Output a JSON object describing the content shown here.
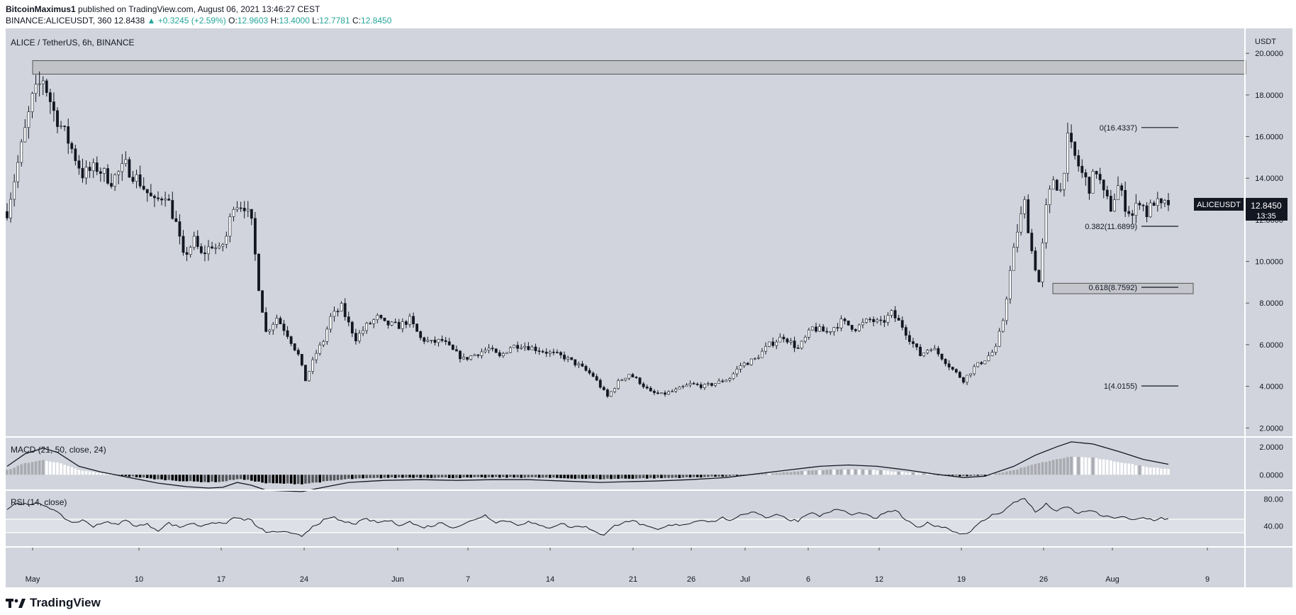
{
  "header": {
    "user": "BitcoinMaximus1",
    "published": "published on TradingView.com, August 06, 2021 13:46:27 CEST",
    "symbol": "BINANCE:ALICEUSDT, 360",
    "last": "12.8438",
    "change_arrow": "▲",
    "change": "+0.3245 (+2.59%)",
    "o_label": "O:",
    "o": "12.9603",
    "h_label": "H:",
    "h": "13.4000",
    "l_label": "L:",
    "l": "12.7781",
    "c_label": "C:",
    "c": "12.8450"
  },
  "branding": {
    "name": "TradingView",
    "icon": "tradingview-logo-icon"
  },
  "colors": {
    "background": "#d1d4dc",
    "candle": "#131722",
    "rsi_band": "#dde0e6",
    "up_text": "#26a69a"
  },
  "chart_data": [
    {
      "type": "candlestick",
      "title": "ALICE / TetherUS, 6h, BINANCE",
      "currency": "USDT",
      "symbol_tag": "ALICEUSDT",
      "price_tag": "12.8450",
      "countdown": "13:35",
      "x_ticks": [
        "May",
        "10",
        "17",
        "24",
        "Jun",
        "7",
        "14",
        "21",
        "26",
        "Jul",
        "6",
        "12",
        "19",
        "26",
        "Aug",
        "9"
      ],
      "y_ticks": [
        "20.0000",
        "18.0000",
        "16.0000",
        "14.0000",
        "12.0000",
        "10.0000",
        "8.0000",
        "6.0000",
        "4.0000",
        "2.0000"
      ],
      "ylim": [
        1.6,
        21.2
      ],
      "resistance_zone": [
        19.0,
        19.65
      ],
      "support_zone": [
        8.45,
        8.95
      ],
      "fib_levels": [
        {
          "label": "0(16.4337)",
          "value": 16.4337
        },
        {
          "label": "0.382(11.6899)",
          "value": 11.6899
        },
        {
          "label": "0.618(8.7592)",
          "value": 8.7592
        },
        {
          "label": "1(4.0155)",
          "value": 4.0155
        }
      ],
      "close_path": [
        [
          0,
          12.4
        ],
        [
          4,
          15.5
        ],
        [
          7,
          17.8
        ],
        [
          10,
          18.8
        ],
        [
          13,
          17.2
        ],
        [
          17,
          15.8
        ],
        [
          21,
          14.2
        ],
        [
          25,
          14.5
        ],
        [
          29,
          13.9
        ],
        [
          33,
          14.6
        ],
        [
          37,
          13.8
        ],
        [
          41,
          12.8
        ],
        [
          44,
          13.3
        ],
        [
          47,
          11.8
        ],
        [
          49,
          10.2
        ],
        [
          52,
          11.0
        ],
        [
          54,
          10.3
        ],
        [
          57,
          10.8
        ],
        [
          59,
          10.5
        ],
        [
          61,
          11.2
        ],
        [
          63,
          12.8
        ],
        [
          66,
          12.7
        ],
        [
          68,
          11.8
        ],
        [
          70,
          8.8
        ],
        [
          72,
          6.6
        ],
        [
          75,
          7.3
        ],
        [
          78,
          6.5
        ],
        [
          81,
          5.5
        ],
        [
          83,
          4.3
        ],
        [
          86,
          5.6
        ],
        [
          88,
          6.2
        ],
        [
          90,
          7.3
        ],
        [
          93,
          7.8
        ],
        [
          95,
          7.0
        ],
        [
          97,
          6.3
        ],
        [
          100,
          6.9
        ],
        [
          103,
          7.3
        ],
        [
          105,
          7.0
        ],
        [
          109,
          6.9
        ],
        [
          112,
          7.2
        ],
        [
          115,
          6.3
        ],
        [
          118,
          6.1
        ],
        [
          121,
          6.2
        ],
        [
          124,
          5.7
        ],
        [
          127,
          5.3
        ],
        [
          131,
          5.6
        ],
        [
          134,
          5.8
        ],
        [
          137,
          5.4
        ],
        [
          140,
          5.9
        ],
        [
          143,
          6.0
        ],
        [
          147,
          5.8
        ],
        [
          151,
          5.6
        ],
        [
          155,
          5.4
        ],
        [
          159,
          5.0
        ],
        [
          163,
          4.5
        ],
        [
          167,
          3.5
        ],
        [
          170,
          4.2
        ],
        [
          173,
          4.6
        ],
        [
          176,
          4.2
        ],
        [
          179,
          3.7
        ],
        [
          182,
          3.6
        ],
        [
          186,
          3.8
        ],
        [
          190,
          4.1
        ],
        [
          194,
          4.0
        ],
        [
          198,
          4.2
        ],
        [
          201,
          4.4
        ],
        [
          204,
          5.0
        ],
        [
          208,
          5.3
        ],
        [
          212,
          6.0
        ],
        [
          216,
          6.4
        ],
        [
          220,
          5.8
        ],
        [
          224,
          6.8
        ],
        [
          228,
          6.6
        ],
        [
          232,
          7.1
        ],
        [
          236,
          6.8
        ],
        [
          240,
          7.2
        ],
        [
          243,
          7.0
        ],
        [
          246,
          7.5
        ],
        [
          249,
          6.9
        ],
        [
          251,
          6.3
        ],
        [
          254,
          5.5
        ],
        [
          257,
          5.9
        ],
        [
          260,
          5.4
        ],
        [
          263,
          4.8
        ],
        [
          266,
          4.3
        ],
        [
          269,
          4.9
        ],
        [
          272,
          5.3
        ],
        [
          275,
          5.8
        ],
        [
          277,
          7.2
        ],
        [
          279,
          9.5
        ],
        [
          281,
          11.5
        ],
        [
          283,
          12.8
        ],
        [
          285,
          10.5
        ],
        [
          287,
          9.0
        ],
        [
          289,
          12.5
        ],
        [
          291,
          14.0
        ],
        [
          293,
          13.4
        ],
        [
          295,
          15.8
        ],
        [
          297,
          15.0
        ],
        [
          299,
          14.2
        ],
        [
          301,
          13.6
        ],
        [
          303,
          14.4
        ],
        [
          305,
          13.2
        ],
        [
          307,
          12.6
        ],
        [
          309,
          13.6
        ],
        [
          311,
          12.7
        ],
        [
          313,
          12.2
        ],
        [
          315,
          13.0
        ],
        [
          317,
          12.3
        ],
        [
          319,
          12.9
        ],
        [
          321,
          12.6
        ],
        [
          323,
          12.8
        ]
      ]
    },
    {
      "type": "histogram",
      "title": "MACD (21, 50, close, 24)",
      "y_ticks": [
        "2.0000",
        "0.0000"
      ],
      "ylim": [
        -1.05,
        2.65
      ],
      "macd_path": [
        [
          0,
          0.6
        ],
        [
          5,
          1.5
        ],
        [
          10,
          1.9
        ],
        [
          14,
          1.6
        ],
        [
          20,
          0.6
        ],
        [
          26,
          0.2
        ],
        [
          34,
          -0.2
        ],
        [
          42,
          -0.6
        ],
        [
          50,
          -0.85
        ],
        [
          56,
          -0.95
        ],
        [
          60,
          -0.9
        ],
        [
          64,
          -0.55
        ],
        [
          68,
          -0.75
        ],
        [
          72,
          -1.1
        ],
        [
          82,
          -1.2
        ],
        [
          88,
          -0.9
        ],
        [
          95,
          -0.55
        ],
        [
          105,
          -0.4
        ],
        [
          115,
          -0.35
        ],
        [
          125,
          -0.4
        ],
        [
          135,
          -0.35
        ],
        [
          145,
          -0.35
        ],
        [
          155,
          -0.45
        ],
        [
          165,
          -0.55
        ],
        [
          172,
          -0.5
        ],
        [
          180,
          -0.45
        ],
        [
          190,
          -0.35
        ],
        [
          200,
          -0.2
        ],
        [
          208,
          0.05
        ],
        [
          216,
          0.3
        ],
        [
          226,
          0.6
        ],
        [
          234,
          0.7
        ],
        [
          242,
          0.6
        ],
        [
          250,
          0.35
        ],
        [
          258,
          0.05
        ],
        [
          266,
          -0.2
        ],
        [
          272,
          -0.1
        ],
        [
          280,
          0.6
        ],
        [
          286,
          1.4
        ],
        [
          292,
          2.0
        ],
        [
          296,
          2.35
        ],
        [
          302,
          2.2
        ],
        [
          310,
          1.6
        ],
        [
          316,
          1.1
        ],
        [
          323,
          0.75
        ]
      ]
    },
    {
      "type": "line",
      "title": "RSI (14, close)",
      "y_ticks": [
        "80.00",
        "40.00"
      ],
      "ylim": [
        10,
        92
      ],
      "band": [
        30,
        50
      ],
      "rsi_path": [
        [
          0,
          65
        ],
        [
          3,
          75
        ],
        [
          6,
          70
        ],
        [
          9,
          74
        ],
        [
          12,
          67
        ],
        [
          15,
          55
        ],
        [
          18,
          45
        ],
        [
          21,
          48
        ],
        [
          24,
          40
        ],
        [
          27,
          46
        ],
        [
          30,
          42
        ],
        [
          33,
          48
        ],
        [
          36,
          40
        ],
        [
          39,
          42
        ],
        [
          42,
          34
        ],
        [
          45,
          44
        ],
        [
          48,
          38
        ],
        [
          51,
          44
        ],
        [
          54,
          40
        ],
        [
          57,
          46
        ],
        [
          60,
          42
        ],
        [
          63,
          52
        ],
        [
          66,
          50
        ],
        [
          68,
          48
        ],
        [
          70,
          36
        ],
        [
          73,
          30
        ],
        [
          76,
          32
        ],
        [
          79,
          28
        ],
        [
          82,
          25
        ],
        [
          85,
          40
        ],
        [
          88,
          48
        ],
        [
          91,
          52
        ],
        [
          94,
          45
        ],
        [
          97,
          44
        ],
        [
          100,
          50
        ],
        [
          103,
          45
        ],
        [
          106,
          48
        ],
        [
          109,
          42
        ],
        [
          112,
          46
        ],
        [
          115,
          38
        ],
        [
          118,
          40
        ],
        [
          121,
          45
        ],
        [
          124,
          38
        ],
        [
          127,
          42
        ],
        [
          130,
          50
        ],
        [
          133,
          56
        ],
        [
          136,
          46
        ],
        [
          139,
          48
        ],
        [
          142,
          42
        ],
        [
          145,
          46
        ],
        [
          148,
          40
        ],
        [
          151,
          38
        ],
        [
          154,
          44
        ],
        [
          157,
          38
        ],
        [
          160,
          40
        ],
        [
          163,
          34
        ],
        [
          166,
          26
        ],
        [
          169,
          40
        ],
        [
          172,
          48
        ],
        [
          175,
          46
        ],
        [
          178,
          38
        ],
        [
          181,
          34
        ],
        [
          184,
          40
        ],
        [
          187,
          42
        ],
        [
          190,
          44
        ],
        [
          193,
          50
        ],
        [
          196,
          46
        ],
        [
          199,
          52
        ],
        [
          202,
          48
        ],
        [
          205,
          58
        ],
        [
          208,
          62
        ],
        [
          211,
          52
        ],
        [
          214,
          58
        ],
        [
          217,
          50
        ],
        [
          220,
          48
        ],
        [
          223,
          60
        ],
        [
          226,
          55
        ],
        [
          229,
          62
        ],
        [
          232,
          64
        ],
        [
          235,
          56
        ],
        [
          238,
          60
        ],
        [
          241,
          50
        ],
        [
          244,
          58
        ],
        [
          247,
          64
        ],
        [
          250,
          48
        ],
        [
          253,
          38
        ],
        [
          256,
          44
        ],
        [
          259,
          40
        ],
        [
          262,
          36
        ],
        [
          265,
          28
        ],
        [
          268,
          32
        ],
        [
          271,
          46
        ],
        [
          274,
          56
        ],
        [
          277,
          62
        ],
        [
          280,
          74
        ],
        [
          283,
          82
        ],
        [
          286,
          60
        ],
        [
          289,
          72
        ],
        [
          292,
          62
        ],
        [
          295,
          68
        ],
        [
          298,
          58
        ],
        [
          301,
          64
        ],
        [
          304,
          56
        ],
        [
          307,
          52
        ],
        [
          310,
          54
        ],
        [
          313,
          48
        ],
        [
          316,
          52
        ],
        [
          319,
          49
        ],
        [
          321,
          52
        ],
        [
          323,
          50
        ]
      ]
    }
  ]
}
